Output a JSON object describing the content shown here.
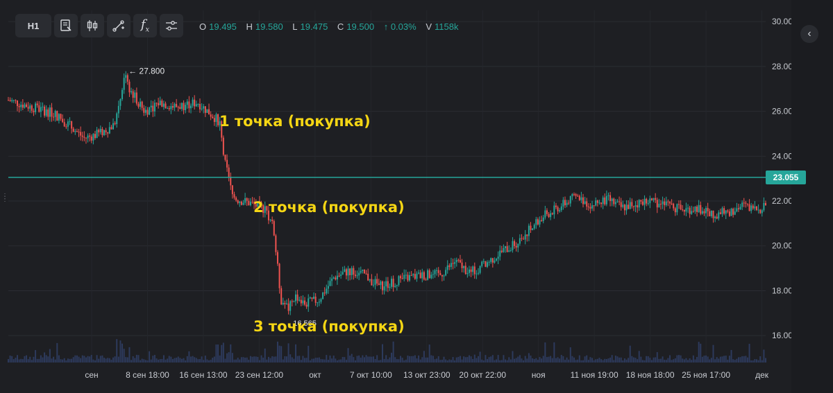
{
  "toolbar": {
    "timeframe": "H1",
    "tools": [
      {
        "name": "template-edit-icon"
      },
      {
        "name": "candlestick-icon"
      },
      {
        "name": "drawing-tool-icon"
      },
      {
        "name": "function-icon",
        "glyph": "fx"
      },
      {
        "name": "settings-sliders-icon"
      }
    ]
  },
  "ohlc": {
    "o_label": "O",
    "o": "19.495",
    "h_label": "H",
    "h": "19.580",
    "l_label": "L",
    "l": "19.475",
    "c_label": "C",
    "c": "19.500",
    "change": "↑ 0.03%",
    "v_label": "V",
    "v": "1158k"
  },
  "colors": {
    "up": "#26a69a",
    "down": "#ef5350",
    "annotation": "#f5d614",
    "background": "#1e1f23",
    "volume": "#2d3a5c"
  },
  "chart_data": {
    "type": "candlestick",
    "ylim": [
      14.8,
      30.5
    ],
    "y_ticks": [
      "30.000",
      "28.000",
      "26.000",
      "24.000",
      "22.000",
      "20.000",
      "18.000",
      "16.000"
    ],
    "x_ticks": [
      "сен",
      "8 сен 18:00",
      "16 сен 13:00",
      "23 сен 12:00",
      "окт",
      "7 окт 10:00",
      "13 окт 23:00",
      "20 окт 22:00",
      "ноя",
      "11 ноя 19:00",
      "18 ноя 18:00",
      "25 ноя 17:00",
      "дек"
    ],
    "current_price": "23.055",
    "current_price_value": 23.055,
    "high_label": "27.800",
    "high_value": 27.8,
    "low_label": "16.565",
    "low_value": 16.565,
    "price_path": [
      [
        0,
        26.5
      ],
      [
        3,
        26.2
      ],
      [
        6,
        25.9
      ],
      [
        8,
        25.4
      ],
      [
        10,
        24.8
      ],
      [
        12,
        25.0
      ],
      [
        14,
        25.4
      ],
      [
        15.5,
        27.8
      ],
      [
        16,
        27.0
      ],
      [
        18,
        26.0
      ],
      [
        20,
        26.4
      ],
      [
        22,
        26.2
      ],
      [
        25,
        26.4
      ],
      [
        27,
        25.8
      ],
      [
        28,
        25.5
      ],
      [
        28.5,
        23.8
      ],
      [
        29,
        23.2
      ],
      [
        29.5,
        22.3
      ],
      [
        30,
        22.1
      ],
      [
        32,
        21.9
      ],
      [
        34,
        21.6
      ],
      [
        35,
        20.8
      ],
      [
        36,
        17.6
      ],
      [
        37,
        17.2
      ],
      [
        38,
        17.8
      ],
      [
        39,
        17.4
      ],
      [
        41,
        17.6
      ],
      [
        43,
        18.6
      ],
      [
        45,
        18.9
      ],
      [
        47,
        18.7
      ],
      [
        49,
        18.2
      ],
      [
        51,
        18.4
      ],
      [
        53,
        18.6
      ],
      [
        55,
        18.7
      ],
      [
        57,
        18.7
      ],
      [
        59,
        19.3
      ],
      [
        61,
        18.8
      ],
      [
        63,
        19.2
      ],
      [
        65,
        19.7
      ],
      [
        67,
        20.1
      ],
      [
        69,
        20.8
      ],
      [
        71,
        21.4
      ],
      [
        73,
        21.8
      ],
      [
        75,
        22.2
      ],
      [
        77,
        21.8
      ],
      [
        79,
        22.1
      ],
      [
        81,
        21.7
      ],
      [
        83,
        21.9
      ],
      [
        85,
        22.0
      ],
      [
        87,
        21.8
      ],
      [
        89,
        21.6
      ],
      [
        91,
        21.7
      ],
      [
        93,
        21.4
      ],
      [
        95,
        21.5
      ],
      [
        97,
        21.8
      ],
      [
        99,
        21.6
      ],
      [
        100,
        21.9
      ]
    ],
    "annotations": [
      "1 точка (покупка)",
      "2 точка (покупка)",
      "3 точка (покупка)"
    ]
  }
}
